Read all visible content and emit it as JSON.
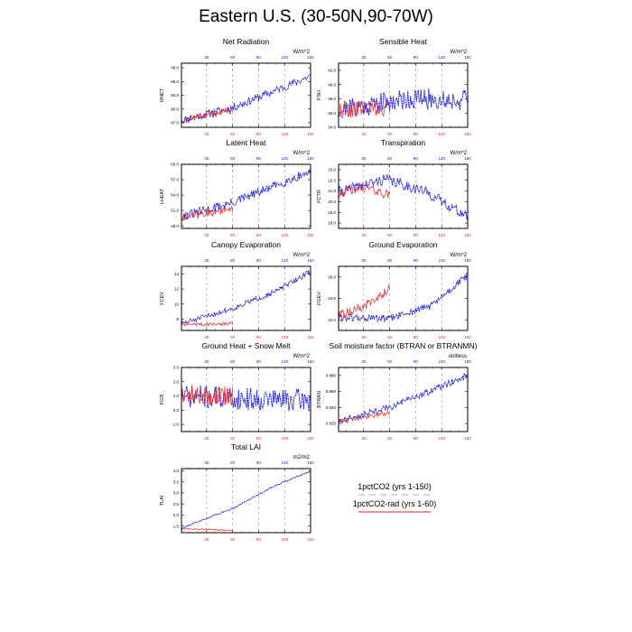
{
  "title": "Eastern U.S. (30-50N,90-70W)",
  "colors": {
    "ctrl": "#1111dd",
    "rad": "#ee2222",
    "frame": "#000000",
    "grid": "#999999",
    "topTick": "#1111dd",
    "botTick": "#ee2222"
  },
  "legend": [
    {
      "label": "1pctCO2 (yrs 1-150)",
      "color": "#aaaacc",
      "style": "dashed"
    },
    {
      "label": "1pctCO2-rad (yrs 1-60)",
      "color": "#ee2222",
      "style": "solid"
    }
  ],
  "chart_data": [
    {
      "type": "line",
      "title": "Net Radiation",
      "ylabel": "RNET",
      "units": "W/m^2",
      "xlim": [
        1,
        150
      ],
      "ylim": [
        86,
        100
      ],
      "yticks": [
        87.0,
        90.0,
        93.0,
        96.0,
        99.0
      ],
      "yprec": 1,
      "xticks": [
        30,
        60,
        90,
        120,
        150
      ],
      "series": [
        {
          "key": "ctrl",
          "n": 150,
          "anchors": [
            [
              1,
              87.5
            ],
            [
              60,
              90.3
            ],
            [
              100,
              93.3
            ],
            [
              150,
              97.2
            ]
          ],
          "noise": 0.9,
          "seed": 11
        },
        {
          "key": "rad",
          "n": 60,
          "anchors": [
            [
              1,
              87.6
            ],
            [
              60,
              89.8
            ]
          ],
          "noise": 0.8,
          "seed": 12
        }
      ]
    },
    {
      "type": "line",
      "title": "Sensible Heat",
      "ylabel": "FSH",
      "units": "W/m^2",
      "xlim": [
        1,
        150
      ],
      "ylim": [
        34,
        43
      ],
      "yticks": [
        34.0,
        36.0,
        38.0,
        40.0,
        42.0
      ],
      "yprec": 1,
      "xticks": [
        30,
        60,
        90,
        120,
        150
      ],
      "series": [
        {
          "key": "ctrl",
          "n": 150,
          "anchors": [
            [
              1,
              36.5
            ],
            [
              80,
              38.0
            ],
            [
              150,
              37.8
            ]
          ],
          "noise": 1.5,
          "seed": 21
        },
        {
          "key": "rad",
          "n": 60,
          "anchors": [
            [
              1,
              36.4
            ],
            [
              60,
              36.8
            ]
          ],
          "noise": 1.2,
          "seed": 22
        }
      ]
    },
    {
      "type": "line",
      "title": "Latent Heat",
      "ylabel": "LHEAT",
      "units": "W/m^2",
      "xlim": [
        1,
        150
      ],
      "ylim": [
        47.5,
        60
      ],
      "yticks": [
        48.0,
        51.0,
        54.0,
        57.0,
        60.0
      ],
      "yprec": 1,
      "xticks": [
        30,
        60,
        90,
        120,
        150
      ],
      "series": [
        {
          "key": "ctrl",
          "n": 150,
          "anchors": [
            [
              1,
              49.8
            ],
            [
              60,
              52.5
            ],
            [
              100,
              55.2
            ],
            [
              150,
              58.6
            ]
          ],
          "noise": 0.9,
          "seed": 31
        },
        {
          "key": "rad",
          "n": 60,
          "anchors": [
            [
              1,
              49.6
            ],
            [
              60,
              51.3
            ]
          ],
          "noise": 0.8,
          "seed": 32
        }
      ]
    },
    {
      "type": "line",
      "title": "Transpiration",
      "ylabel": "FCTR",
      "units": "W/m^2",
      "xlim": [
        1,
        150
      ],
      "ylim": [
        17.5,
        23.5
      ],
      "yticks": [
        18.0,
        19.0,
        20.0,
        21.0,
        22.0,
        23.0
      ],
      "yprec": 1,
      "xticks": [
        30,
        60,
        90,
        120,
        150
      ],
      "series": [
        {
          "key": "ctrl",
          "n": 150,
          "anchors": [
            [
              1,
              20.9
            ],
            [
              55,
              22.1
            ],
            [
              100,
              21.0
            ],
            [
              150,
              18.6
            ]
          ],
          "noise": 0.5,
          "seed": 41
        },
        {
          "key": "rad",
          "n": 60,
          "anchors": [
            [
              1,
              20.8
            ],
            [
              30,
              21.4
            ],
            [
              60,
              20.6
            ]
          ],
          "noise": 0.45,
          "seed": 42
        }
      ]
    },
    {
      "type": "line",
      "title": "Canopy Evaporation",
      "ylabel": "FCEV",
      "units": "W/m^2",
      "xlim": [
        1,
        150
      ],
      "ylim": [
        6.5,
        15
      ],
      "yticks": [
        8,
        10,
        12,
        14
      ],
      "yprec": 0,
      "xticks": [
        30,
        60,
        90,
        120,
        150
      ],
      "series": [
        {
          "key": "ctrl",
          "n": 150,
          "anchors": [
            [
              1,
              7.4
            ],
            [
              60,
              9.4
            ],
            [
              110,
              11.7
            ],
            [
              150,
              14.3
            ]
          ],
          "noise": 0.35,
          "seed": 51
        },
        {
          "key": "rad",
          "n": 60,
          "anchors": [
            [
              1,
              7.3
            ],
            [
              30,
              7.3
            ],
            [
              60,
              7.4
            ]
          ],
          "noise": 0.22,
          "seed": 52
        }
      ]
    },
    {
      "type": "line",
      "title": "Ground Evaporation",
      "ylabel": "FGEV",
      "units": "W/m^2",
      "xlim": [
        1,
        150
      ],
      "ylim": [
        21,
        27
      ],
      "yticks": [
        22.0,
        24.0,
        26.0
      ],
      "yprec": 1,
      "xticks": [
        30,
        60,
        90,
        120,
        150
      ],
      "series": [
        {
          "key": "ctrl",
          "n": 150,
          "anchors": [
            [
              1,
              22.2
            ],
            [
              60,
              22.1
            ],
            [
              110,
              23.4
            ],
            [
              150,
              26.2
            ]
          ],
          "noise": 0.35,
          "seed": 61
        },
        {
          "key": "rad",
          "n": 60,
          "anchors": [
            [
              1,
              22.4
            ],
            [
              30,
              23.2
            ],
            [
              60,
              24.9
            ]
          ],
          "noise": 0.45,
          "seed": 62
        }
      ]
    },
    {
      "type": "line",
      "title": "Ground Heat + Snow Melt",
      "ylabel": "FGR",
      "units": "W/m^2",
      "xlim": [
        1,
        150
      ],
      "ylim": [
        -1.5,
        3
      ],
      "yticks": [
        -1.0,
        0.0,
        1.0,
        2.0,
        3.0
      ],
      "yprec": 1,
      "xticks": [
        30,
        60,
        90,
        120,
        150
      ],
      "series": [
        {
          "key": "ctrl",
          "n": 150,
          "anchors": [
            [
              1,
              1.0
            ],
            [
              75,
              0.8
            ],
            [
              150,
              0.7
            ]
          ],
          "noise": 0.8,
          "seed": 71
        },
        {
          "key": "rad",
          "n": 60,
          "anchors": [
            [
              1,
              1.1
            ],
            [
              60,
              1.0
            ]
          ],
          "noise": 0.7,
          "seed": 72
        }
      ]
    },
    {
      "type": "line",
      "title": "Soil moisture factor (BTRAN or BTRANMN)",
      "ylabel": "BTRAN",
      "units": "unitless",
      "xlim": [
        1,
        150
      ],
      "ylim": [
        0.81,
        0.89
      ],
      "yticks": [
        0.82,
        0.84,
        0.86,
        0.88
      ],
      "yprec": 3,
      "xticks": [
        30,
        60,
        90,
        120,
        150
      ],
      "series": [
        {
          "key": "ctrl",
          "n": 150,
          "anchors": [
            [
              1,
              0.823
            ],
            [
              60,
              0.84
            ],
            [
              110,
              0.862
            ],
            [
              150,
              0.88
            ]
          ],
          "noise": 0.004,
          "seed": 81
        },
        {
          "key": "rad",
          "n": 60,
          "anchors": [
            [
              1,
              0.822
            ],
            [
              60,
              0.834
            ]
          ],
          "noise": 0.003,
          "seed": 82
        }
      ]
    },
    {
      "type": "line",
      "title": "Total LAI",
      "ylabel": "TLAI",
      "units": "m2/m2",
      "xlim": [
        1,
        150
      ],
      "ylim": [
        1.2,
        4.1
      ],
      "yticks": [
        1.5,
        2.0,
        2.5,
        3.0,
        3.5,
        4.0
      ],
      "yprec": 1,
      "xticks": [
        30,
        60,
        90,
        120,
        150
      ],
      "series": [
        {
          "key": "ctrl",
          "n": 150,
          "anchors": [
            [
              1,
              1.4
            ],
            [
              60,
              2.3
            ],
            [
              110,
              3.35
            ],
            [
              150,
              3.98
            ]
          ],
          "noise": 0.03,
          "seed": 91
        },
        {
          "key": "rad",
          "n": 60,
          "anchors": [
            [
              1,
              1.37
            ],
            [
              30,
              1.35
            ],
            [
              60,
              1.3
            ]
          ],
          "noise": 0.025,
          "seed": 92
        }
      ]
    }
  ]
}
